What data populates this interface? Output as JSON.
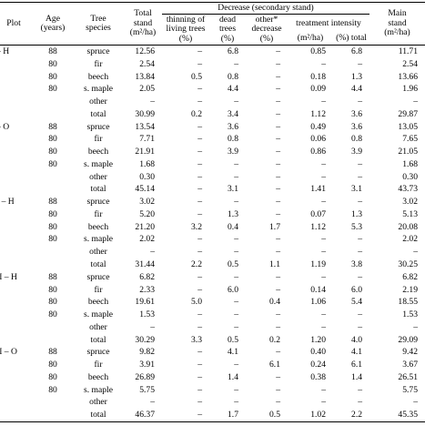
{
  "table": {
    "header": {
      "plot": [
        "Plot"
      ],
      "age": [
        "Age",
        "(years)"
      ],
      "species": [
        "Tree",
        "species"
      ],
      "total_stand": [
        "Total",
        "stand",
        "(m²/ha)"
      ],
      "decrease": "Decrease (secondary stand)",
      "thinning": [
        "thinning of",
        "living trees",
        "(%)"
      ],
      "dead": [
        "dead",
        "trees",
        "(%)"
      ],
      "other": [
        "other*",
        "decrease",
        "(%)"
      ],
      "treatment": "treatment intensity",
      "treatment_m2": "(m²/ha)",
      "treatment_pct": "(%) total",
      "main_stand": [
        "Main",
        "stand",
        "(m²/ha)"
      ]
    },
    "groups": [
      {
        "plot": "– H",
        "rows": [
          [
            "88",
            "spruce",
            "12.56",
            "–",
            "6.8",
            "–",
            "0.85",
            "6.8",
            "11.71"
          ],
          [
            "80",
            "fir",
            "2.54",
            "–",
            "–",
            "–",
            "–",
            "–",
            "2.54"
          ],
          [
            "80",
            "beech",
            "13.84",
            "0.5",
            "0.8",
            "–",
            "0.18",
            "1.3",
            "13.66"
          ],
          [
            "80",
            "s. maple",
            "2.05",
            "–",
            "4.4",
            "–",
            "0.09",
            "4.4",
            "1.96"
          ],
          [
            null,
            "other",
            "–",
            "–",
            "–",
            "–",
            "–",
            "–",
            "–"
          ],
          [
            null,
            "total",
            "30.99",
            "0.2",
            "3.4",
            "–",
            "1.12",
            "3.6",
            "29.87"
          ]
        ]
      },
      {
        "plot": "– O",
        "rows": [
          [
            "88",
            "spruce",
            "13.54",
            "–",
            "3.6",
            "–",
            "0.49",
            "3.6",
            "13.05"
          ],
          [
            "80",
            "fir",
            "7.71",
            "–",
            "0.8",
            "–",
            "0.06",
            "0.8",
            "7.65"
          ],
          [
            "80",
            "beech",
            "21.91",
            "–",
            "3.9",
            "–",
            "0.86",
            "3.9",
            "21.05"
          ],
          [
            "80",
            "s. maple",
            "1.68",
            "–",
            "–",
            "–",
            "–",
            "–",
            "1.68"
          ],
          [
            null,
            "other",
            "0.30",
            "–",
            "–",
            "–",
            "–",
            "–",
            "0.30"
          ],
          [
            null,
            "total",
            "45.14",
            "–",
            "3.1",
            "–",
            "1.41",
            "3.1",
            "43.73"
          ]
        ]
      },
      {
        "plot": "I – H",
        "rows": [
          [
            "88",
            "spruce",
            "3.02",
            "–",
            "–",
            "–",
            "–",
            "–",
            "3.02"
          ],
          [
            "80",
            "fir",
            "5.20",
            "–",
            "1.3",
            "–",
            "0.07",
            "1.3",
            "5.13"
          ],
          [
            "80",
            "beech",
            "21.20",
            "3.2",
            "0.4",
            "1.7",
            "1.12",
            "5.3",
            "20.08"
          ],
          [
            "80",
            "s. maple",
            "2.02",
            "–",
            "–",
            "–",
            "–",
            "–",
            "2.02"
          ],
          [
            null,
            "other",
            "–",
            "–",
            "–",
            "–",
            "–",
            "–",
            "–"
          ],
          [
            null,
            "total",
            "31.44",
            "2.2",
            "0.5",
            "1.1",
            "1.19",
            "3.8",
            "30.25"
          ]
        ]
      },
      {
        "plot": "II – H",
        "rows": [
          [
            "88",
            "spruce",
            "6.82",
            "–",
            "–",
            "–",
            "–",
            "–",
            "6.82"
          ],
          [
            "80",
            "fir",
            "2.33",
            "–",
            "6.0",
            "–",
            "0.14",
            "6.0",
            "2.19"
          ],
          [
            "80",
            "beech",
            "19.61",
            "5.0",
            "–",
            "0.4",
            "1.06",
            "5.4",
            "18.55"
          ],
          [
            "80",
            "s. maple",
            "1.53",
            "–",
            "–",
            "–",
            "–",
            "–",
            "1.53"
          ],
          [
            null,
            "other",
            "–",
            "–",
            "–",
            "–",
            "–",
            "–",
            "–"
          ],
          [
            null,
            "total",
            "30.29",
            "3.3",
            "0.5",
            "0.2",
            "1.20",
            "4.0",
            "29.09"
          ]
        ]
      },
      {
        "plot": "II – O",
        "rows": [
          [
            "88",
            "spruce",
            "9.82",
            "–",
            "4.1",
            "–",
            "0.40",
            "4.1",
            "9.42"
          ],
          [
            "80",
            "fir",
            "3.91",
            "–",
            "–",
            "6.1",
            "0.24",
            "6.1",
            "3.67"
          ],
          [
            "80",
            "beech",
            "26.89",
            "–",
            "1.4",
            "–",
            "0.38",
            "1.4",
            "26.51"
          ],
          [
            "80",
            "s. maple",
            "5.75",
            "–",
            "–",
            "–",
            "–",
            "–",
            "5.75"
          ],
          [
            null,
            "other",
            "–",
            "–",
            "–",
            "–",
            "–",
            "–",
            "–"
          ],
          [
            null,
            "total",
            "46.37",
            "–",
            "1.7",
            "0.5",
            "1.02",
            "2.2",
            "45.35"
          ]
        ]
      }
    ]
  }
}
